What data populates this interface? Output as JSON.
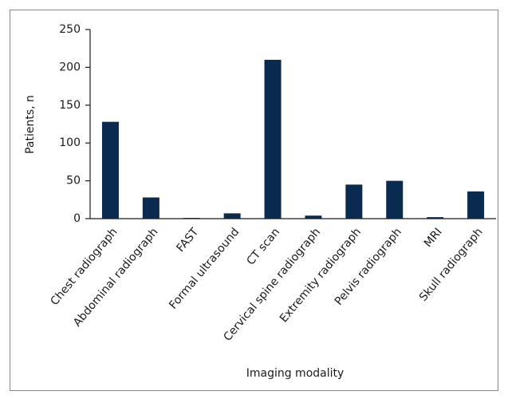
{
  "chart_data": {
    "type": "bar",
    "x_label": "Imaging modality",
    "y_label": "Patients, n",
    "categories": [
      "Chest radiograph",
      "Abdominal radiograph",
      "FAST",
      "Formal ultrasound",
      "CT scan",
      "Cervical spine radiograph",
      "Extremity radiograph",
      "Pelvis radiograph",
      "MRI",
      "Skull radiograph"
    ],
    "values": [
      128,
      28,
      1,
      7,
      210,
      4,
      45,
      50,
      2,
      36
    ],
    "color": "#0a2a4f",
    "ylim": [
      0,
      250
    ],
    "yticks": [
      0,
      50,
      100,
      150,
      200,
      250
    ],
    "grid": false
  }
}
